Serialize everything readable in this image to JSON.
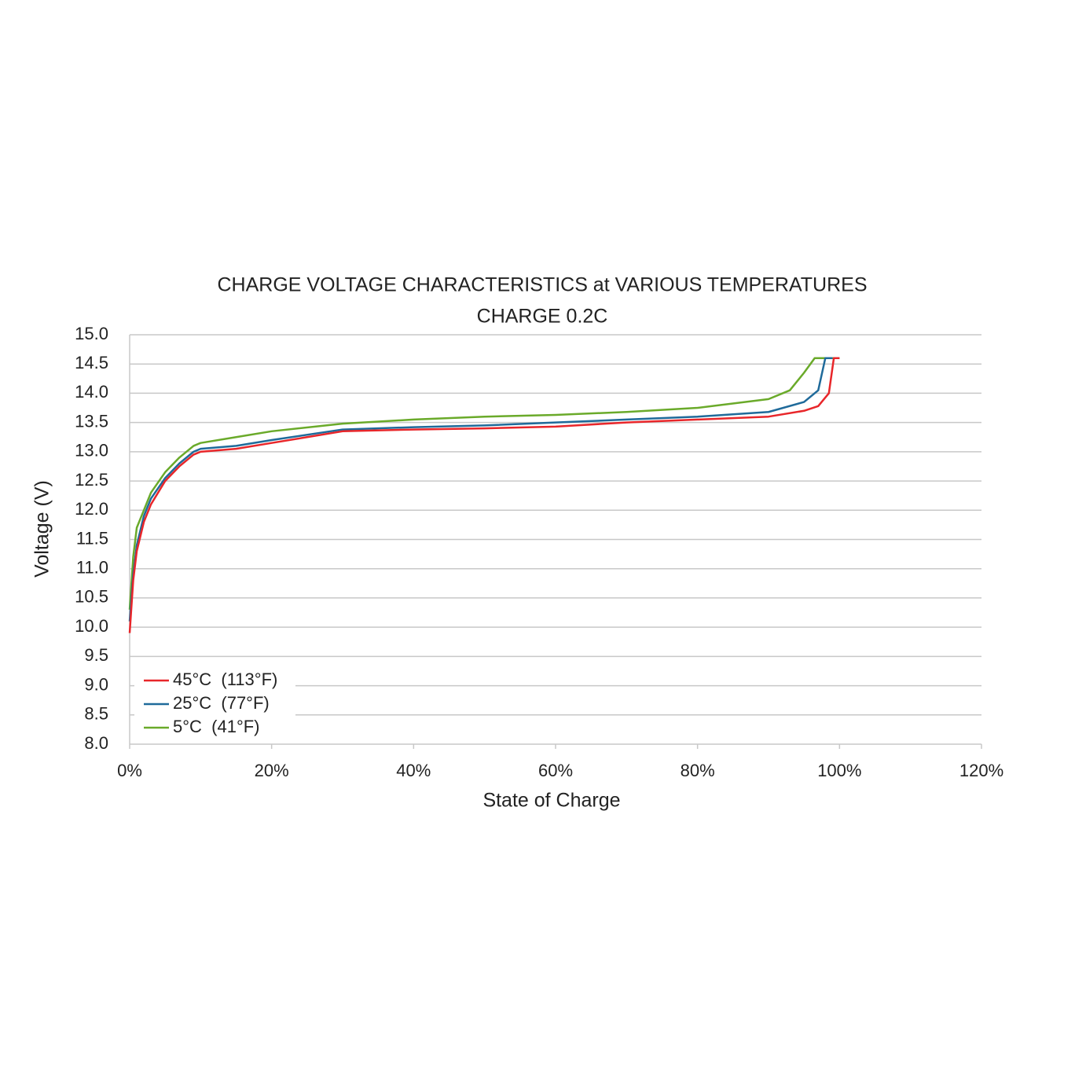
{
  "chart_data": {
    "type": "line",
    "title": "CHARGE VOLTAGE CHARACTERISTICS at VARIOUS TEMPERATURES",
    "subtitle": "CHARGE 0.2C",
    "x_label": "State of Charge",
    "y_label": "Voltage (V)",
    "xlim": [
      0,
      120
    ],
    "xticks": [
      {
        "value": 0,
        "label": "0%"
      },
      {
        "value": 20,
        "label": "20%"
      },
      {
        "value": 40,
        "label": "40%"
      },
      {
        "value": 60,
        "label": "60%"
      },
      {
        "value": 80,
        "label": "80%"
      },
      {
        "value": 100,
        "label": "100%"
      },
      {
        "value": 120,
        "label": "120%"
      }
    ],
    "ylim": [
      8,
      15
    ],
    "yticks": [
      {
        "value": 8,
        "label": "8.0"
      },
      8.5,
      {
        "value": 9,
        "label": "9.0"
      },
      9.5,
      {
        "value": 10,
        "label": "10.0"
      },
      10.5,
      {
        "value": 11,
        "label": "11.0"
      },
      11.5,
      {
        "value": 12,
        "label": "12.0"
      },
      12.5,
      {
        "value": 13,
        "label": "13.0"
      },
      13.5,
      {
        "value": 14,
        "label": "14.0"
      },
      14.5,
      {
        "value": 15,
        "label": "15.0"
      }
    ],
    "grid": true,
    "legend": "lower-left",
    "series": [
      {
        "name": "45°C  (113°F)",
        "color": "#e8262a",
        "x": [
          0,
          0.5,
          1,
          2,
          3,
          5,
          7,
          9,
          10,
          15,
          20,
          25,
          30,
          40,
          50,
          60,
          70,
          80,
          90,
          95,
          97,
          98.5,
          99.2,
          100
        ],
        "values": [
          9.9,
          10.8,
          11.3,
          11.8,
          12.1,
          12.5,
          12.75,
          12.95,
          13.0,
          13.05,
          13.15,
          13.25,
          13.35,
          13.38,
          13.4,
          13.43,
          13.5,
          13.55,
          13.6,
          13.7,
          13.78,
          14.0,
          14.6,
          14.6
        ]
      },
      {
        "name": "25°C  (77°F)",
        "color": "#1f6a9a",
        "x": [
          0,
          0.5,
          1,
          2,
          3,
          5,
          7,
          9,
          10,
          15,
          20,
          30,
          40,
          50,
          60,
          70,
          80,
          90,
          95,
          97,
          98,
          99
        ],
        "values": [
          10.1,
          10.9,
          11.4,
          11.9,
          12.2,
          12.55,
          12.8,
          13.0,
          13.05,
          13.1,
          13.2,
          13.38,
          13.42,
          13.45,
          13.5,
          13.55,
          13.6,
          13.68,
          13.85,
          14.05,
          14.6,
          14.6
        ]
      },
      {
        "name": "5°C  (41°F)",
        "color": "#6aaa2a",
        "x": [
          0,
          0.5,
          1,
          2,
          3,
          5,
          7,
          9,
          10,
          15,
          20,
          30,
          40,
          50,
          60,
          70,
          80,
          90,
          93,
          95,
          96.5,
          99,
          100
        ],
        "values": [
          10.3,
          11.2,
          11.7,
          12.0,
          12.3,
          12.65,
          12.9,
          13.1,
          13.15,
          13.25,
          13.35,
          13.48,
          13.55,
          13.6,
          13.63,
          13.68,
          13.75,
          13.9,
          14.05,
          14.35,
          14.6,
          14.6,
          14.6
        ]
      }
    ]
  }
}
